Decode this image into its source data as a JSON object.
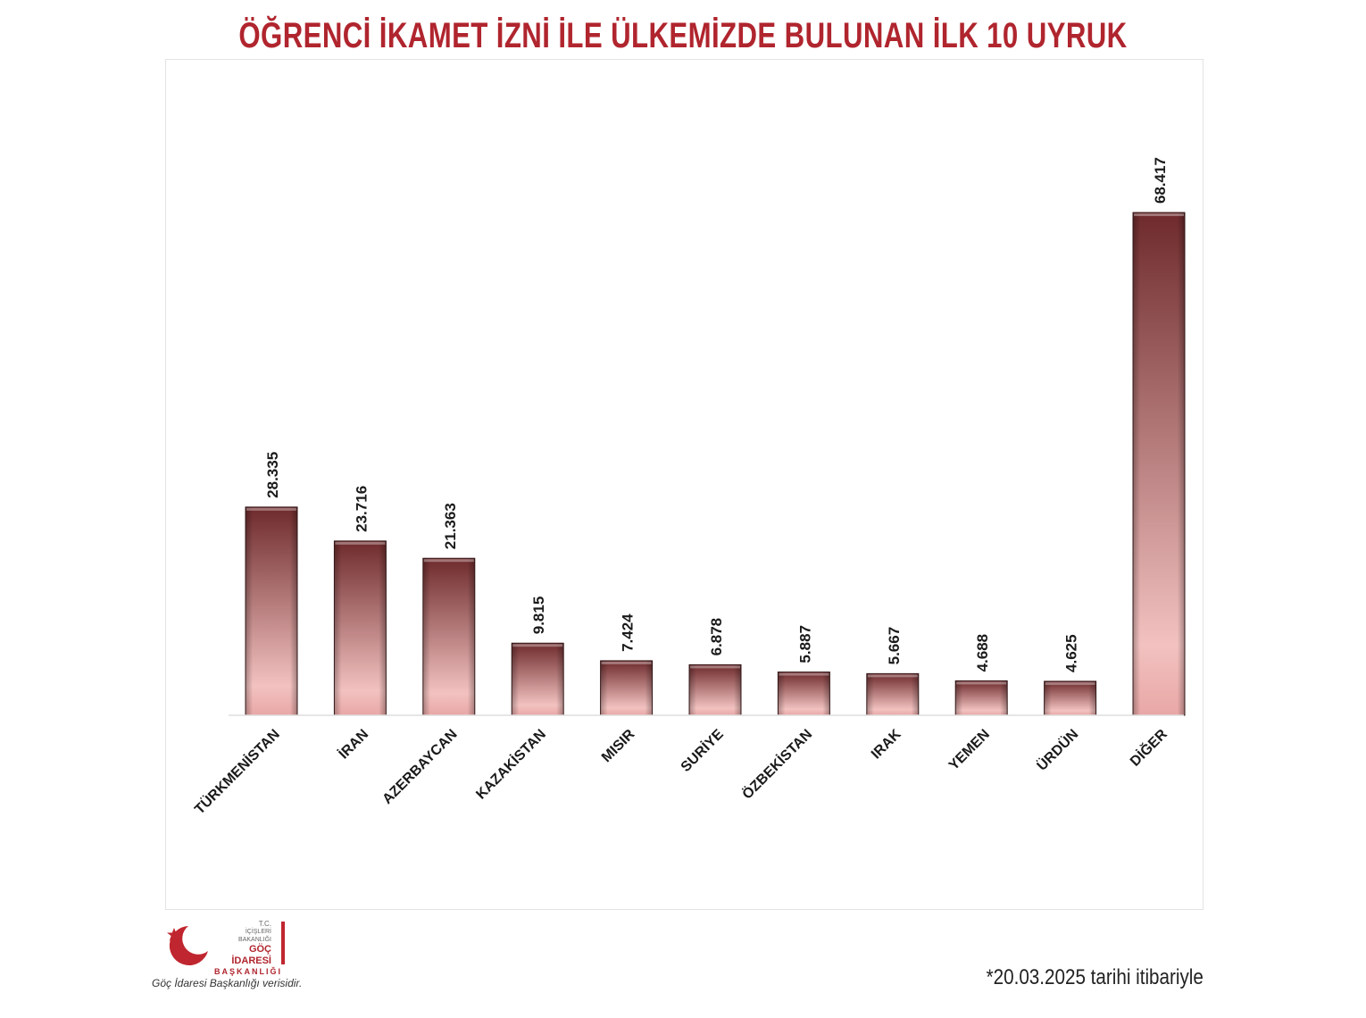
{
  "title": "ÖĞRENCİ İKAMET İZNİ İLE ÜLKEMİZDE BULUNAN İLK 10 UYRUK",
  "logo": {
    "line1": "T.C.",
    "line2": "İÇİŞLERİ BAKANLIĞI",
    "line3": "GÖÇ İDARESİ",
    "line4": "BAŞKANLIĞI"
  },
  "source_note": "Göç İdaresi Başkanlığı verisidir.",
  "footnote": "*20.03.2025 tarihi itibariyle",
  "colors": {
    "title": "#b0252e",
    "bar_top": "#6e2a2c",
    "bar_bottom": "#f2c2c0",
    "logo_red": "#c0262f"
  },
  "chart_data": {
    "type": "bar",
    "title": "ÖĞRENCİ İKAMET İZNİ İLE ÜLKEMİZDE BULUNAN İLK 10 UYRUK",
    "categories": [
      "TÜRKMENİSTAN",
      "İRAN",
      "AZERBAYCAN",
      "KAZAKİSTAN",
      "MISIR",
      "SURİYE",
      "ÖZBEKİSTAN",
      "IRAK",
      "YEMEN",
      "ÜRDÜN",
      "DİĞER"
    ],
    "values": [
      28335,
      23716,
      21363,
      9815,
      7424,
      6878,
      5887,
      5667,
      4688,
      4625,
      68417
    ],
    "value_labels": [
      "28.335",
      "23.716",
      "21.363",
      "9.815",
      "7.424",
      "6.878",
      "5.887",
      "5.667",
      "4.688",
      "4.625",
      "68.417"
    ],
    "xlabel": "",
    "ylabel": "",
    "ylim": [
      0,
      68417
    ],
    "grid": false,
    "legend": "none"
  }
}
